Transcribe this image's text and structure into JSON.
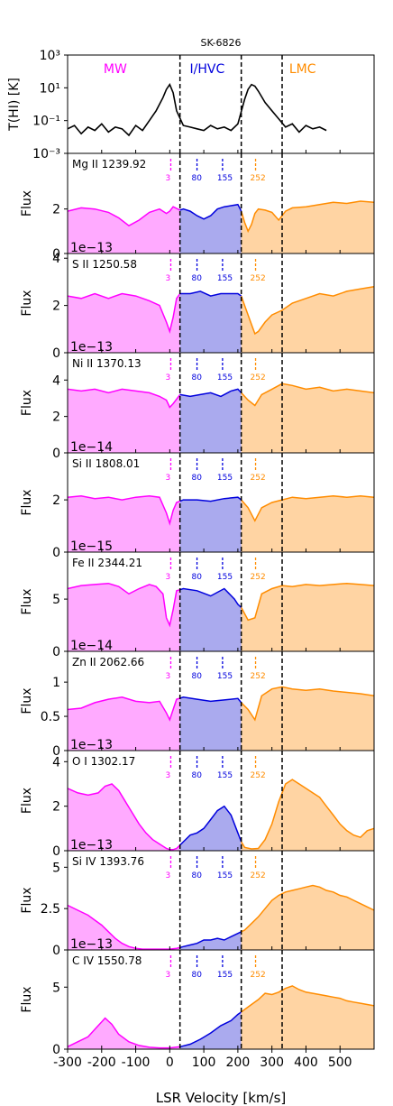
{
  "figure_title": "SK-6826",
  "x_axis_label": "LSR Velocity [km/s]",
  "x_ticks": [
    "-300",
    "-200",
    "-100",
    "0",
    "100",
    "200",
    "300",
    "400",
    "500"
  ],
  "colors": {
    "mw": "#ff00ff",
    "ihvc": "#0000dd",
    "lmc": "#ff8c00",
    "mw_fill": "#ffaaff",
    "ihvc_fill": "#aaaaee",
    "lmc_fill": "#ffd4a3"
  },
  "chart_data": [
    {
      "type": "line",
      "name": "T(HI)",
      "ylabel": "T(HI) [K]",
      "yscale": "log",
      "y_ticks": [
        "10⁻³",
        "10⁻¹",
        "10¹",
        "10³"
      ],
      "region_labels": [
        "MW",
        "I/HVC",
        "LMC"
      ],
      "x": [
        -300,
        -280,
        -260,
        -240,
        -220,
        -200,
        -180,
        -160,
        -140,
        -120,
        -100,
        -80,
        -60,
        -40,
        -20,
        -10,
        0,
        10,
        20,
        40,
        60,
        80,
        100,
        120,
        140,
        160,
        180,
        200,
        220,
        230,
        240,
        250,
        260,
        280,
        300,
        320,
        340,
        360,
        380,
        400,
        420,
        440,
        460
      ],
      "y_log10": [
        -1.5,
        -1.3,
        -1.8,
        -1.4,
        -1.6,
        -1.2,
        -1.7,
        -1.4,
        -1.5,
        -1.9,
        -1.3,
        -1.6,
        -1.0,
        -0.4,
        0.4,
        0.9,
        1.2,
        0.7,
        -0.4,
        -1.3,
        -1.4,
        -1.5,
        -1.6,
        -1.3,
        -1.5,
        -1.4,
        -1.6,
        -1.2,
        0.3,
        0.9,
        1.2,
        1.1,
        0.8,
        0.1,
        -0.4,
        -0.9,
        -1.4,
        -1.2,
        -1.7,
        -1.3,
        -1.5,
        -1.4,
        -1.6
      ]
    },
    {
      "type": "area",
      "name": "Mg II 1239.92",
      "ylabel": "Flux",
      "scale_label": "1e−13",
      "y_ticks": [
        0,
        2
      ],
      "ylim": [
        0,
        4.5
      ],
      "x": [
        -300,
        -260,
        -220,
        -180,
        -150,
        -120,
        -90,
        -60,
        -30,
        -10,
        0,
        10,
        30,
        40,
        60,
        80,
        100,
        120,
        140,
        160,
        180,
        200,
        210,
        220,
        230,
        240,
        250,
        260,
        280,
        300,
        320,
        340,
        360,
        400,
        440,
        480,
        520,
        560,
        600
      ],
      "y": [
        1.9,
        2.05,
        2.0,
        1.85,
        1.6,
        1.25,
        1.5,
        1.85,
        2.0,
        1.8,
        1.9,
        2.1,
        1.95,
        2.0,
        1.9,
        1.7,
        1.55,
        1.7,
        2.0,
        2.1,
        2.15,
        2.2,
        1.9,
        1.4,
        1.0,
        1.3,
        1.8,
        2.0,
        1.95,
        1.85,
        1.5,
        1.9,
        2.05,
        2.1,
        2.2,
        2.3,
        2.25,
        2.35,
        2.3
      ]
    },
    {
      "type": "area",
      "name": "S II 1250.58",
      "ylabel": "Flux",
      "scale_label": "1e−13",
      "y_ticks": [
        0,
        2,
        4
      ],
      "ylim": [
        0,
        4.2
      ],
      "x": [
        -300,
        -260,
        -220,
        -180,
        -140,
        -100,
        -60,
        -30,
        -10,
        0,
        10,
        20,
        30,
        60,
        90,
        120,
        150,
        180,
        200,
        210,
        220,
        240,
        250,
        260,
        280,
        300,
        330,
        360,
        400,
        440,
        480,
        520,
        560,
        600
      ],
      "y": [
        2.4,
        2.3,
        2.5,
        2.3,
        2.5,
        2.4,
        2.2,
        2.0,
        1.3,
        0.9,
        1.5,
        2.3,
        2.5,
        2.5,
        2.6,
        2.4,
        2.5,
        2.5,
        2.5,
        2.4,
        2.0,
        1.2,
        0.8,
        0.9,
        1.3,
        1.6,
        1.8,
        2.1,
        2.3,
        2.5,
        2.4,
        2.6,
        2.7,
        2.8
      ]
    },
    {
      "type": "area",
      "name": "Ni II 1370.13",
      "ylabel": "Flux",
      "scale_label": "1e−14",
      "y_ticks": [
        0,
        2,
        4
      ],
      "ylim": [
        0,
        5.5
      ],
      "x": [
        -300,
        -260,
        -220,
        -180,
        -140,
        -100,
        -60,
        -30,
        -10,
        0,
        10,
        30,
        60,
        90,
        120,
        150,
        180,
        200,
        210,
        230,
        250,
        270,
        300,
        330,
        360,
        400,
        440,
        480,
        520,
        560,
        600
      ],
      "y": [
        3.5,
        3.4,
        3.5,
        3.3,
        3.5,
        3.4,
        3.3,
        3.1,
        2.9,
        2.5,
        2.7,
        3.2,
        3.1,
        3.2,
        3.3,
        3.1,
        3.4,
        3.5,
        3.3,
        2.9,
        2.6,
        3.2,
        3.5,
        3.8,
        3.7,
        3.5,
        3.6,
        3.4,
        3.5,
        3.4,
        3.3
      ]
    },
    {
      "type": "area",
      "name": "Si II 1808.01",
      "ylabel": "Flux",
      "scale_label": "1e−15",
      "y_ticks": [
        0,
        2
      ],
      "ylim": [
        0,
        3.8
      ],
      "x": [
        -300,
        -260,
        -220,
        -180,
        -140,
        -100,
        -60,
        -30,
        -10,
        0,
        10,
        20,
        40,
        80,
        120,
        160,
        200,
        210,
        230,
        250,
        270,
        300,
        330,
        360,
        400,
        440,
        480,
        520,
        560,
        600
      ],
      "y": [
        2.1,
        2.15,
        2.05,
        2.1,
        2.0,
        2.1,
        2.15,
        2.1,
        1.5,
        1.1,
        1.6,
        1.9,
        2.0,
        2.0,
        1.95,
        2.05,
        2.1,
        2.0,
        1.7,
        1.2,
        1.7,
        1.9,
        2.0,
        2.1,
        2.05,
        2.1,
        2.15,
        2.1,
        2.15,
        2.1
      ]
    },
    {
      "type": "area",
      "name": "Fe II 2344.21",
      "ylabel": "Flux",
      "scale_label": "1e−14",
      "y_ticks": [
        0,
        5
      ],
      "ylim": [
        0,
        9.5
      ],
      "x": [
        -300,
        -260,
        -220,
        -180,
        -150,
        -120,
        -90,
        -60,
        -40,
        -20,
        -10,
        0,
        10,
        20,
        40,
        80,
        120,
        160,
        190,
        200,
        210,
        230,
        250,
        270,
        300,
        330,
        360,
        400,
        440,
        480,
        520,
        560,
        600
      ],
      "y": [
        6.0,
        6.3,
        6.4,
        6.5,
        6.2,
        5.5,
        6.0,
        6.4,
        6.2,
        5.5,
        3.2,
        2.5,
        4.0,
        5.8,
        6.0,
        5.8,
        5.3,
        6.0,
        5.0,
        4.5,
        4.2,
        3.0,
        3.2,
        5.5,
        6.0,
        6.3,
        6.2,
        6.4,
        6.3,
        6.4,
        6.5,
        6.4,
        6.3
      ]
    },
    {
      "type": "area",
      "name": "Zn II 2062.66",
      "ylabel": "Flux",
      "scale_label": "1e−13",
      "y_ticks": [
        0.0,
        0.5,
        1.0
      ],
      "ylim": [
        0,
        1.45
      ],
      "x": [
        -300,
        -260,
        -220,
        -180,
        -140,
        -100,
        -60,
        -30,
        -10,
        0,
        10,
        20,
        40,
        80,
        120,
        160,
        200,
        210,
        230,
        250,
        270,
        300,
        330,
        360,
        400,
        440,
        480,
        520,
        560,
        600
      ],
      "y": [
        0.6,
        0.62,
        0.7,
        0.75,
        0.78,
        0.72,
        0.7,
        0.72,
        0.55,
        0.45,
        0.6,
        0.75,
        0.78,
        0.75,
        0.72,
        0.74,
        0.76,
        0.7,
        0.6,
        0.45,
        0.8,
        0.9,
        0.93,
        0.9,
        0.88,
        0.9,
        0.87,
        0.85,
        0.83,
        0.8
      ]
    },
    {
      "type": "area",
      "name": "O I 1302.17",
      "ylabel": "Flux",
      "scale_label": "1e−13",
      "y_ticks": [
        0,
        2,
        4
      ],
      "ylim": [
        0,
        4.5
      ],
      "x": [
        -300,
        -270,
        -240,
        -210,
        -190,
        -170,
        -150,
        -130,
        -110,
        -90,
        -70,
        -50,
        -30,
        -10,
        0,
        10,
        20,
        40,
        60,
        80,
        100,
        120,
        140,
        160,
        180,
        200,
        210,
        220,
        240,
        260,
        280,
        300,
        320,
        340,
        360,
        380,
        400,
        420,
        440,
        460,
        480,
        500,
        520,
        540,
        560,
        580,
        600
      ],
      "y": [
        2.8,
        2.6,
        2.5,
        2.6,
        2.9,
        3.0,
        2.7,
        2.2,
        1.7,
        1.2,
        0.8,
        0.5,
        0.3,
        0.1,
        0.05,
        0.05,
        0.1,
        0.4,
        0.7,
        0.8,
        1.0,
        1.4,
        1.8,
        2.0,
        1.6,
        0.8,
        0.4,
        0.15,
        0.08,
        0.1,
        0.5,
        1.2,
        2.2,
        3.0,
        3.2,
        3.0,
        2.8,
        2.6,
        2.4,
        2.0,
        1.6,
        1.2,
        0.9,
        0.7,
        0.6,
        0.9,
        1.0
      ]
    },
    {
      "type": "area",
      "name": "Si IV 1393.76",
      "ylabel": "Flux",
      "scale_label": "1e−13",
      "y_ticks": [
        0.0,
        2.5,
        5.0
      ],
      "ylim": [
        0,
        6.0
      ],
      "x": [
        -300,
        -270,
        -240,
        -220,
        -200,
        -180,
        -160,
        -140,
        -120,
        -100,
        -80,
        -60,
        -40,
        -20,
        0,
        20,
        40,
        60,
        80,
        100,
        120,
        140,
        160,
        180,
        200,
        220,
        240,
        260,
        280,
        300,
        320,
        340,
        360,
        380,
        400,
        420,
        440,
        460,
        480,
        500,
        520,
        540,
        560,
        580,
        600
      ],
      "y": [
        2.7,
        2.4,
        2.1,
        1.8,
        1.5,
        1.1,
        0.7,
        0.4,
        0.2,
        0.1,
        0.05,
        0.05,
        0.05,
        0.05,
        0.05,
        0.1,
        0.2,
        0.3,
        0.4,
        0.6,
        0.6,
        0.7,
        0.6,
        0.8,
        1.0,
        1.2,
        1.6,
        2.0,
        2.5,
        3.0,
        3.3,
        3.5,
        3.6,
        3.7,
        3.8,
        3.9,
        3.8,
        3.6,
        3.5,
        3.3,
        3.2,
        3.0,
        2.8,
        2.6,
        2.4
      ]
    },
    {
      "type": "area",
      "name": "C IV 1550.78",
      "ylabel": "Flux",
      "scale_label": "",
      "y_ticks": [
        0,
        5
      ],
      "ylim": [
        0,
        8.0
      ],
      "x": [
        -300,
        -270,
        -240,
        -220,
        -200,
        -190,
        -170,
        -150,
        -120,
        -90,
        -60,
        -30,
        0,
        30,
        60,
        90,
        120,
        150,
        180,
        200,
        220,
        240,
        260,
        280,
        300,
        320,
        340,
        360,
        380,
        400,
        420,
        440,
        460,
        480,
        500,
        520,
        540,
        560,
        580,
        600
      ],
      "y": [
        0.2,
        0.6,
        1.0,
        1.6,
        2.2,
        2.5,
        2.0,
        1.2,
        0.6,
        0.3,
        0.15,
        0.1,
        0.1,
        0.2,
        0.4,
        0.8,
        1.3,
        1.9,
        2.3,
        2.8,
        3.2,
        3.6,
        4.0,
        4.5,
        4.4,
        4.6,
        4.9,
        5.1,
        4.8,
        4.6,
        4.5,
        4.4,
        4.3,
        4.2,
        4.1,
        3.9,
        3.8,
        3.7,
        3.6,
        3.5
      ]
    }
  ],
  "component_markers": {
    "mw": {
      "velocity": 3,
      "label": "3"
    },
    "ihvc": [
      {
        "velocity": 80,
        "label": "80"
      },
      {
        "velocity": 155,
        "label": "155"
      }
    ],
    "lmc": {
      "velocity": 252,
      "label": "252"
    }
  },
  "boundaries": [
    30,
    210,
    330
  ],
  "xlim": [
    -300,
    600
  ]
}
